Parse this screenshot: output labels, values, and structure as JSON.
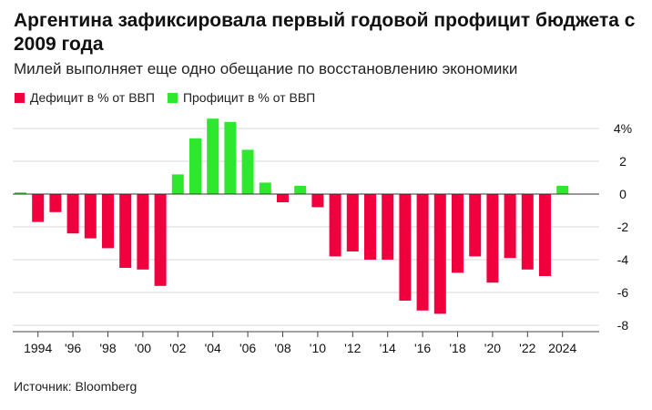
{
  "title": "Аргентина зафиксировала первый годовой профицит бюджета с 2009 года",
  "subtitle": "Милей выполняет еще одно обещание по восстановлению экономики",
  "source": "Источник: Bloomberg",
  "colors": {
    "deficit": "#f0003c",
    "surplus": "#2ee82e",
    "grid": "#d9d9d9",
    "zero": "#333333"
  },
  "chart_data": {
    "type": "bar",
    "title": "Аргентина зафиксировала первый годовой профицит бюджета с 2009 года",
    "subtitle": "Милей выполняет еще одно обещание по восстановлению экономики",
    "xlabel": "",
    "ylabel": "",
    "ylim": [
      -8.5,
      4.5
    ],
    "grid": true,
    "y_axis_side": "right",
    "legend_placement": "top-left",
    "legend": [
      {
        "name": "Дефицит в % от ВВП",
        "color": "#f0003c"
      },
      {
        "name": "Профицит в % от ВВП",
        "color": "#2ee82e"
      }
    ],
    "y_ticks": [
      {
        "value": 4,
        "label": "4%"
      },
      {
        "value": 2,
        "label": "2"
      },
      {
        "value": 0,
        "label": "0"
      },
      {
        "value": -2,
        "label": "-2"
      },
      {
        "value": -4,
        "label": "-4"
      },
      {
        "value": -6,
        "label": "-6"
      },
      {
        "value": -8,
        "label": "-8"
      }
    ],
    "x_ticks": [
      {
        "year": 1994,
        "label": "1994"
      },
      {
        "year": 1996,
        "label": "'96"
      },
      {
        "year": 1998,
        "label": "'98"
      },
      {
        "year": 2000,
        "label": "'00"
      },
      {
        "year": 2002,
        "label": "'02"
      },
      {
        "year": 2004,
        "label": "'04"
      },
      {
        "year": 2006,
        "label": "'06"
      },
      {
        "year": 2008,
        "label": "'08"
      },
      {
        "year": 2010,
        "label": "'10"
      },
      {
        "year": 2012,
        "label": "'12"
      },
      {
        "year": 2014,
        "label": "'14"
      },
      {
        "year": 2016,
        "label": "'16"
      },
      {
        "year": 2018,
        "label": "'18"
      },
      {
        "year": 2020,
        "label": "'20"
      },
      {
        "year": 2022,
        "label": "'22"
      },
      {
        "year": 2024,
        "label": "2024"
      }
    ],
    "years": [
      1993,
      1994,
      1995,
      1996,
      1997,
      1998,
      1999,
      2000,
      2001,
      2002,
      2003,
      2004,
      2005,
      2006,
      2007,
      2008,
      2009,
      2010,
      2011,
      2012,
      2013,
      2014,
      2015,
      2016,
      2017,
      2018,
      2019,
      2020,
      2021,
      2022,
      2023,
      2024
    ],
    "values": [
      0.1,
      -1.7,
      -1.1,
      -2.4,
      -2.7,
      -3.3,
      -4.5,
      -4.6,
      -5.6,
      1.2,
      3.4,
      4.6,
      4.4,
      2.7,
      0.7,
      -0.5,
      0.5,
      -0.8,
      -3.8,
      -3.5,
      -4.0,
      -4.0,
      -6.5,
      -7.1,
      -7.3,
      -4.8,
      -3.8,
      -5.4,
      -3.9,
      -4.6,
      -5.0,
      0.5
    ]
  }
}
